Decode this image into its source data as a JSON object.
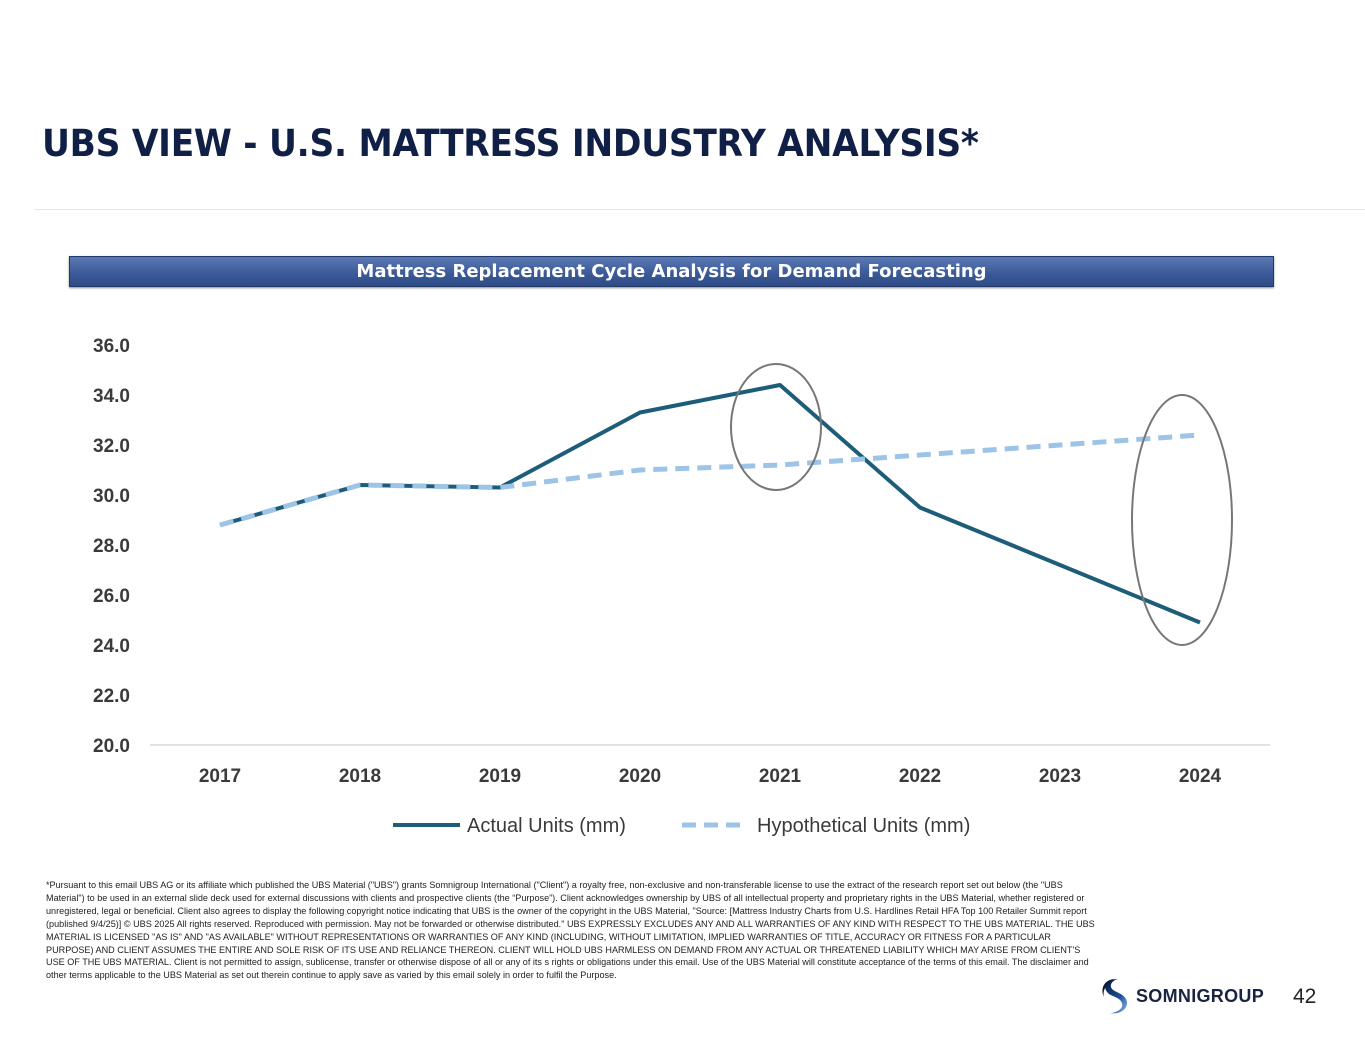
{
  "title": "UBS VIEW - U.S. MATTRESS INDUSTRY ANALYSIS*",
  "chart_data": {
    "type": "line",
    "title": "Mattress Replacement Cycle Analysis for Demand Forecasting",
    "categories": [
      "2017",
      "2018",
      "2019",
      "2020",
      "2021",
      "2022",
      "2023",
      "2024"
    ],
    "series": [
      {
        "name": "Actual Units (mm)",
        "values": [
          28.8,
          30.4,
          30.3,
          33.3,
          34.4,
          29.5,
          27.2,
          24.9
        ],
        "color": "#1d5d7a",
        "style": "solid"
      },
      {
        "name": "Hypothetical Units (mm)",
        "values": [
          28.8,
          30.4,
          30.3,
          31.0,
          31.2,
          31.6,
          32.0,
          32.4
        ],
        "color": "#9dc3e6",
        "style": "dashed"
      }
    ],
    "ylim": [
      20,
      36
    ],
    "yticks": [
      "20.0",
      "22.0",
      "24.0",
      "26.0",
      "28.0",
      "30.0",
      "32.0",
      "34.0",
      "36.0"
    ],
    "legend": "bottom",
    "grid": false,
    "annotations": [
      {
        "type": "ellipse",
        "category": "2021"
      },
      {
        "type": "ellipse",
        "category": "2024"
      }
    ]
  },
  "footnote": "*Pursuant to this email UBS AG or its affiliate which published the UBS Material (\"UBS\") grants Somnigroup International (\"Client\") a royalty free, non-exclusive and non-transferable license to use the extract of the research report set out below (the \"UBS Material\") to be used in an external slide deck used for external discussions with clients and prospective clients (the “Purpose”).  Client acknowledges ownership by UBS of all intellectual property and proprietary rights in the UBS Material, whether registered or unregistered, legal or beneficial. Client also agrees to display the following copyright notice indicating that UBS is the owner of the copyright in the UBS Material, \"Source: [Mattress Industry Charts from U.S. Hardlines Retail HFA Top 100 Retailer Summit report (published 9/4/25)] © UBS 2025 All rights reserved. Reproduced with permission. May not be forwarded or otherwise distributed.\" UBS EXPRESSLY EXCLUDES ANY AND ALL WARRANTIES OF ANY KIND WITH RESPECT TO THE UBS MATERIAL. THE UBS MATERIAL IS LICENSED \"AS IS\" AND \"AS AVAILABLE\" WITHOUT REPRESENTATIONS OR WARRANTIES OF ANY KIND (INCLUDING, WITHOUT LIMITATION, IMPLIED WARRANTIES OF TITLE, ACCURACY OR FITNESS FOR A PARTICULAR PURPOSE) AND CLIENT ASSUMES THE ENTIRE AND SOLE RISK OF ITS USE AND RELIANCE THEREON. CLIENT WILL HOLD UBS HARMLESS ON DEMAND FROM ANY ACTUAL OR THREATENED LIABILITY WHICH MAY ARISE FROM CLIENT'S USE OF THE UBS MATERIAL. Client is not permitted to assign, sublicense, transfer or otherwise dispose of all or any of its s rights or obligations under this email. Use of the UBS Material will constitute acceptance of the terms of this email. The disclaimer and other terms applicable to the UBS Material as set out therein continue to apply save as varied by this email solely in order to fulfil the Purpose.",
  "logo": {
    "text": "SOMNIGROUP"
  },
  "page_number": "42"
}
